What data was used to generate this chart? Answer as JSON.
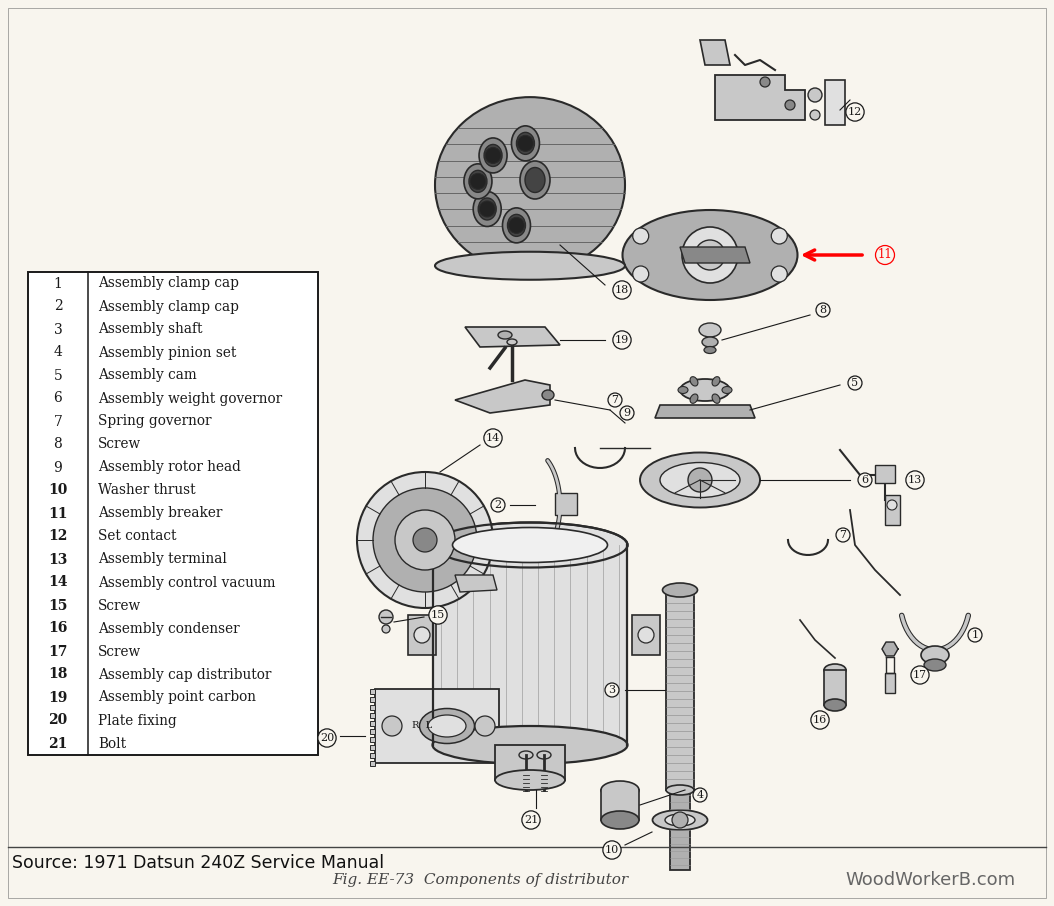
{
  "background_color": "#ffffff",
  "page_bg": "#f8f5ee",
  "border_color": "#222222",
  "fig_width": 10.54,
  "fig_height": 9.06,
  "source_text": "Source: 1971 Datsun 240Z Service Manual",
  "source_fontsize": 12.5,
  "caption_text": "Fig. EE-73  Components of distributor",
  "caption_fontsize": 11,
  "watermark_text": "WoodWorkerB.com",
  "watermark_fontsize": 13,
  "parts_list": [
    [
      1,
      "Assembly clamp cap"
    ],
    [
      2,
      "Assembly clamp cap"
    ],
    [
      3,
      "Assembly shaft"
    ],
    [
      4,
      "Assembly pinion set"
    ],
    [
      5,
      "Assembly cam"
    ],
    [
      6,
      "Assembly weight governor"
    ],
    [
      7,
      "Spring governor"
    ],
    [
      8,
      "Screw"
    ],
    [
      9,
      "Assembly rotor head"
    ],
    [
      10,
      "Washer thrust"
    ],
    [
      11,
      "Assembly breaker"
    ],
    [
      12,
      "Set contact"
    ],
    [
      13,
      "Assembly terminal"
    ],
    [
      14,
      "Assembly control vacuum"
    ],
    [
      15,
      "Screw"
    ],
    [
      16,
      "Assembly condenser"
    ],
    [
      17,
      "Screw"
    ],
    [
      18,
      "Assembly cap distributor"
    ],
    [
      19,
      "Assembly point carbon"
    ],
    [
      20,
      "Plate fixing"
    ],
    [
      21,
      "Bolt"
    ]
  ],
  "ink_color": "#1a1a1a",
  "mid_gray": "#555555",
  "light_gray": "#aaaaaa",
  "part_label_fs": 8.5,
  "diagram_ink": "#2a2a2a"
}
